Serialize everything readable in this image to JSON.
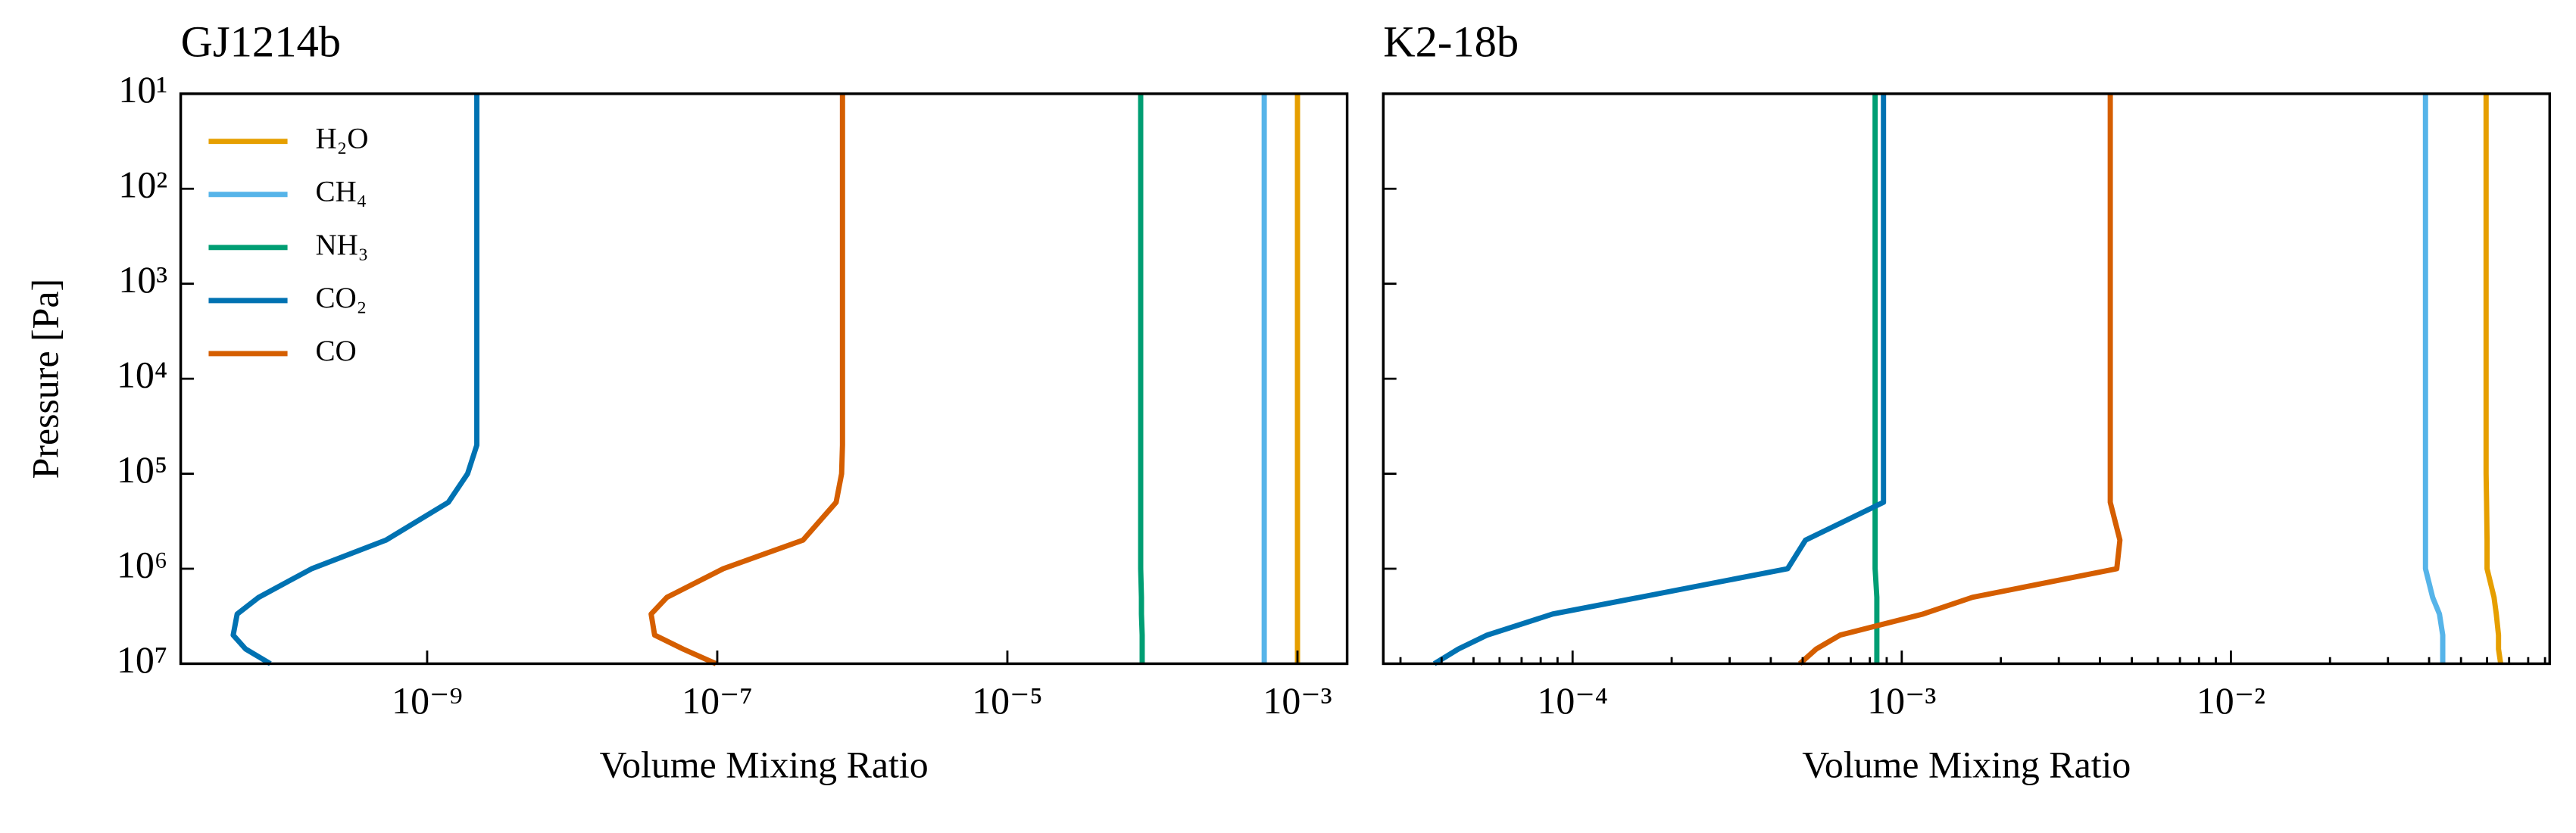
{
  "chart_data": [
    {
      "type": "line",
      "title": "GJ1214b",
      "xlabel": "Volume Mixing Ratio",
      "ylabel": "Pressure [Pa]",
      "x_log": true,
      "y_log": true,
      "y_inverted": true,
      "legend": "upper left",
      "show_ytick_labels": true,
      "minor_xticks": false,
      "xlim": [
        2e-11,
        0.0022
      ],
      "xticks": [
        {
          "value": 1e-09,
          "label": "10⁻⁹"
        },
        {
          "value": 1e-07,
          "label": "10⁻⁷"
        },
        {
          "value": 1e-05,
          "label": "10⁻⁵"
        },
        {
          "value": 0.001,
          "label": "10⁻³"
        }
      ],
      "ylim": [
        10,
        10000000.0
      ],
      "yticks": [
        {
          "value": 10,
          "label": "10¹"
        },
        {
          "value": 100,
          "label": "10²"
        },
        {
          "value": 1000,
          "label": "10³"
        },
        {
          "value": 10000,
          "label": "10⁴"
        },
        {
          "value": 100000,
          "label": "10⁵"
        },
        {
          "value": 1000000,
          "label": "10⁶"
        },
        {
          "value": 10000000,
          "label": "10⁷"
        }
      ],
      "y": [
        10,
        100,
        1000,
        10000,
        50000,
        100000,
        200000,
        500000,
        1000000,
        2000000,
        3000000,
        5000000,
        7000000,
        10000000
      ],
      "series": [
        {
          "name": "H₂O",
          "color": "#E69F00",
          "values": [
            0.001,
            0.001,
            0.001,
            0.001,
            0.001,
            0.001,
            0.001,
            0.001,
            0.001,
            0.001,
            0.001,
            0.001,
            0.001,
            0.001
          ]
        },
        {
          "name": "CH₄",
          "color": "#56B4E9",
          "values": [
            0.00059,
            0.00059,
            0.00059,
            0.00059,
            0.00059,
            0.00059,
            0.00059,
            0.00059,
            0.00059,
            0.00059,
            0.00059,
            0.00059,
            0.00059,
            0.00059
          ]
        },
        {
          "name": "NH₃",
          "color": "#009E73",
          "values": [
            8.3e-05,
            8.3e-05,
            8.3e-05,
            8.3e-05,
            8.3e-05,
            8.3e-05,
            8.3e-05,
            8.3e-05,
            8.3e-05,
            8.4e-05,
            8.4e-05,
            8.5e-05,
            8.5e-05,
            8.5e-05
          ]
        },
        {
          "name": "CO₂",
          "color": "#0072B2",
          "values": [
            2.2e-09,
            2.2e-09,
            2.2e-09,
            2.2e-09,
            2.2e-09,
            1.9e-09,
            1.4e-09,
            5.2e-10,
            1.6e-10,
            6.9e-11,
            4.9e-11,
            4.6e-11,
            5.6e-11,
            8.3e-11
          ]
        },
        {
          "name": "CO",
          "color": "#D55E00",
          "values": [
            7.3e-07,
            7.3e-07,
            7.3e-07,
            7.3e-07,
            7.3e-07,
            7.2e-07,
            6.6e-07,
            3.9e-07,
            1.1e-07,
            4.5e-08,
            3.5e-08,
            3.7e-08,
            5.8e-08,
            9.8e-08
          ]
        }
      ]
    },
    {
      "type": "line",
      "title": "K2-18b",
      "xlabel": "Volume Mixing Ratio",
      "x_log": true,
      "y_log": true,
      "y_inverted": true,
      "show_ytick_labels": false,
      "minor_xticks": true,
      "xlim": [
        2.66e-05,
        0.093
      ],
      "xticks": [
        {
          "value": 0.0001,
          "label": "10⁻⁴"
        },
        {
          "value": 0.001,
          "label": "10⁻³"
        },
        {
          "value": 0.01,
          "label": "10⁻²"
        }
      ],
      "ylim": [
        10,
        10000000.0
      ],
      "yticks": [
        10,
        100,
        1000,
        10000,
        100000,
        1000000,
        10000000
      ],
      "y": [
        10,
        100,
        1000,
        10000,
        50000,
        100000,
        200000,
        500000,
        1000000,
        2000000,
        3000000,
        5000000,
        7000000,
        10000000
      ],
      "series": [
        {
          "color": "#E69F00",
          "values": [
            0.0596,
            0.0596,
            0.0596,
            0.0596,
            0.0596,
            0.0596,
            0.0598,
            0.06,
            0.06,
            0.063,
            0.064,
            0.065,
            0.065,
            0.066
          ]
        },
        {
          "color": "#56B4E9",
          "values": [
            0.039,
            0.039,
            0.039,
            0.039,
            0.039,
            0.039,
            0.039,
            0.039,
            0.039,
            0.041,
            0.043,
            0.044,
            0.044,
            0.044
          ]
        },
        {
          "color": "#009E73",
          "values": [
            0.00083,
            0.00083,
            0.00083,
            0.00083,
            0.00083,
            0.00083,
            0.00083,
            0.00083,
            0.00083,
            0.00084,
            0.00084,
            0.00084,
            0.00084,
            0.00084
          ]
        },
        {
          "color": "#0072B2",
          "values": [
            0.00088,
            0.00088,
            0.00088,
            0.00088,
            0.00088,
            0.00088,
            0.00088,
            0.00051,
            0.00045,
            0.00016,
            8.7e-05,
            5.5e-05,
            4.5e-05,
            3.8e-05
          ]
        },
        {
          "color": "#D55E00",
          "values": [
            0.0043,
            0.0043,
            0.0043,
            0.0043,
            0.0043,
            0.0043,
            0.0043,
            0.0046,
            0.0045,
            0.00164,
            0.00116,
            0.00065,
            0.00055,
            0.00049
          ]
        }
      ]
    }
  ]
}
